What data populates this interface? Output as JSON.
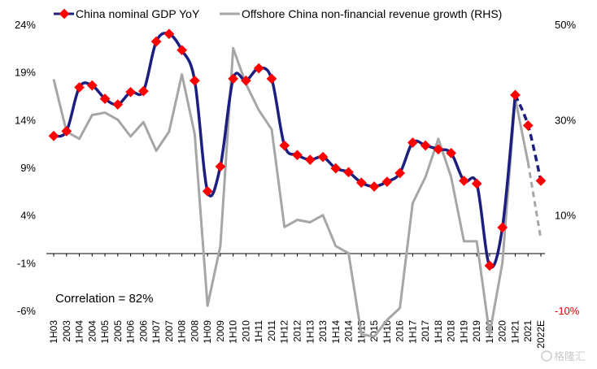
{
  "chart_data": {
    "type": "line",
    "title": "",
    "annotation": "Correlation = 82%",
    "watermark": "格隆汇",
    "left_axis": {
      "ticks": [
        24,
        19,
        14,
        9,
        4,
        -1,
        -6
      ],
      "tick_labels": [
        "24%",
        "19%",
        "14%",
        "9%",
        "4%",
        "-1%",
        "-6%"
      ],
      "range": [
        -6,
        24
      ]
    },
    "right_axis": {
      "ticks": [
        50,
        30,
        10,
        -10
      ],
      "tick_labels": [
        "50%",
        "30%",
        "10%",
        "-10%"
      ],
      "range": [
        -10,
        50
      ]
    },
    "categories": [
      "1H03",
      "2003",
      "1H04",
      "2004",
      "1H05",
      "2005",
      "1H06",
      "2006",
      "1H07",
      "2007",
      "1H08",
      "2008",
      "1H09",
      "2009",
      "1H10",
      "2010",
      "1H11",
      "2011",
      "1H12",
      "2012",
      "1H13",
      "2013",
      "1H14",
      "2014",
      "1H15",
      "2015",
      "1H16",
      "2016",
      "1H17",
      "2017",
      "1H18",
      "2018",
      "1H19",
      "2019",
      "1H20",
      "2020",
      "1H21",
      "2021",
      "2022E"
    ],
    "series": [
      {
        "name": "China nominal GDP YoY",
        "axis": "left",
        "color": "#1c1f80",
        "marker_color": "#ff0000",
        "values": [
          12.3,
          12.8,
          17.4,
          17.6,
          16.2,
          15.6,
          16.9,
          17.0,
          22.2,
          23.0,
          21.3,
          18.1,
          6.5,
          9.1,
          18.3,
          18.1,
          19.4,
          18.3,
          11.3,
          10.3,
          9.8,
          10.1,
          8.9,
          8.5,
          7.4,
          7.0,
          7.5,
          8.4,
          11.6,
          11.3,
          10.9,
          10.5,
          7.6,
          7.3,
          -1.3,
          2.7,
          16.6,
          13.4,
          7.6
        ],
        "forecast_from_index": 36
      },
      {
        "name": "Offshore China non-financial revenue growth (RHS)",
        "axis": "right",
        "color": "#a6a6a6",
        "values": [
          38.5,
          27.5,
          26.0,
          31.0,
          31.5,
          30.0,
          26.5,
          29.5,
          23.5,
          27.5,
          39.5,
          27.0,
          -9.0,
          3.5,
          45.0,
          37.5,
          32.0,
          28.0,
          7.5,
          9.0,
          8.5,
          10.0,
          3.5,
          2.0,
          -15.0,
          -15.5,
          -12.0,
          -9.5,
          12.5,
          18.0,
          26.0,
          18.0,
          4.5,
          4.5,
          -15.0,
          0.0,
          34.5,
          21.0,
          5.0
        ],
        "forecast_from_index": 37
      }
    ],
    "legend_position": "top",
    "grid": false
  }
}
